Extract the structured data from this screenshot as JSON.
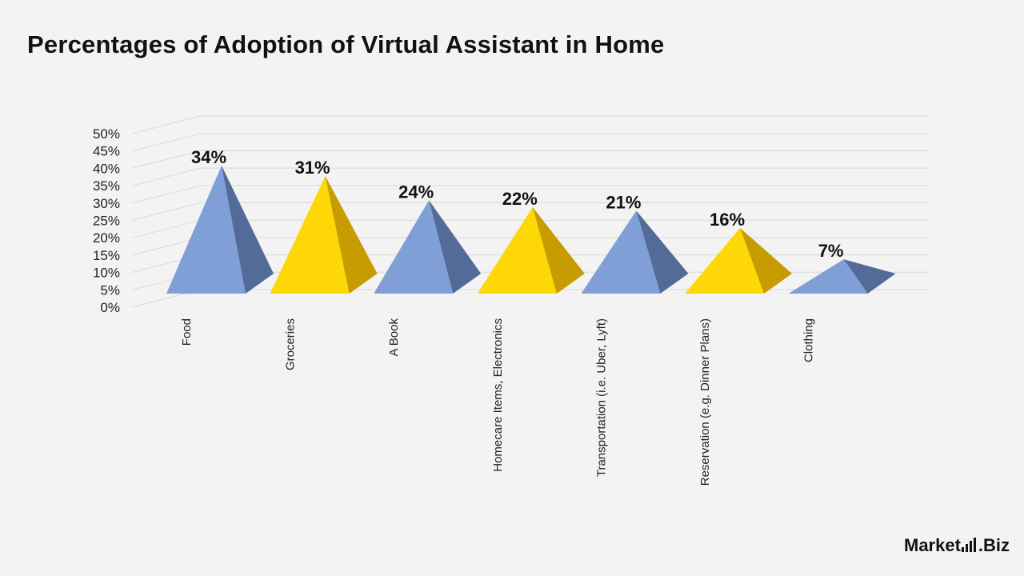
{
  "chart_data": {
    "type": "bar",
    "style": "3d-pyramid",
    "title": "Percentages of Adoption of Virtual Assistant in Home",
    "categories": [
      "Food",
      "Groceries",
      "A Book",
      "Homecare Items, Electronics",
      "Transportation (i.e. Uber, Lyft)",
      "Reservation (e.g. Dinner Plans)",
      "Clothing"
    ],
    "values": [
      34,
      31,
      24,
      22,
      21,
      16,
      7
    ],
    "data_labels": [
      "34%",
      "31%",
      "24%",
      "22%",
      "21%",
      "16%",
      "7%"
    ],
    "y_ticks": [
      "0%",
      "5%",
      "10%",
      "15%",
      "20%",
      "25%",
      "30%",
      "35%",
      "40%",
      "45%",
      "50%"
    ],
    "ylim": [
      0,
      50
    ],
    "grid": true,
    "legend": "none",
    "colors": {
      "blue": "#7f9fd6",
      "blue_side": "#536b98",
      "yellow": "#fdd706",
      "yellow_side": "#c79c00",
      "grid": "#d9d9d9"
    }
  },
  "brand": {
    "name": "Market",
    "suffix": ".Biz"
  }
}
